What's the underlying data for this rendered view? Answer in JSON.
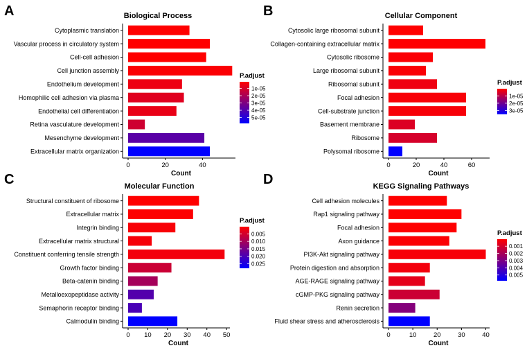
{
  "colors": {
    "low": "#ff0000",
    "high": "#0000ff"
  },
  "chart_data": [
    {
      "letter": "A",
      "type": "bar",
      "orientation": "horizontal",
      "title": "Biological Process",
      "xlabel": "Count",
      "xlim": [
        0,
        57
      ],
      "xticks": [
        "0",
        "20",
        "40"
      ],
      "xtick_values": [
        0,
        20,
        40
      ],
      "categories": [
        "Cytoplasmic translation",
        "Vascular process in circulatory system",
        "Cell-cell adhesion",
        "Cell junction assembly",
        "Endothelium development",
        "Homophilic cell adhesion via plasma",
        "Endothelial cell differentiation",
        "Retina vasculature development",
        "Mesenchyme development",
        "Extracellular matrix organization"
      ],
      "values": [
        33,
        44,
        42,
        56,
        29,
        30,
        26,
        9,
        41,
        44
      ],
      "padj": [
        1e-06,
        1e-06,
        1e-06,
        2e-06,
        5e-06,
        8e-06,
        6e-06,
        1.2e-05,
        3.8e-05,
        5.8e-05
      ],
      "legend": {
        "title": "P.adjust",
        "labels": [
          "1e-05",
          "2e-05",
          "3e-05",
          "4e-05",
          "5e-05"
        ],
        "values": [
          1e-05,
          2e-05,
          3e-05,
          4e-05,
          5e-05
        ],
        "min": 1e-06,
        "max": 5.8e-05
      }
    },
    {
      "letter": "B",
      "type": "bar",
      "orientation": "horizontal",
      "title": "Cellular Component",
      "xlabel": "Count",
      "xlim": [
        0,
        72
      ],
      "xticks": [
        "0",
        "20",
        "40",
        "60"
      ],
      "xtick_values": [
        0,
        20,
        40,
        60
      ],
      "categories": [
        "Cytosolic large ribosomal subunit",
        "Collagen-containing extracellular matrix",
        "Cytosolic ribosome",
        "Large ribosomal subunit",
        "Ribosomal subunit",
        "Focal adhesion",
        "Cell-substrate junction",
        "Basement membrane",
        "Ribosome",
        "Polysomal ribosome"
      ],
      "values": [
        25,
        70,
        32,
        27,
        35,
        56,
        56,
        19,
        35,
        10
      ],
      "padj": [
        3e-07,
        4e-07,
        8e-07,
        1e-06,
        2.5e-06,
        1.2e-06,
        1.4e-06,
        5e-06,
        6e-06,
        3.5e-05
      ],
      "legend": {
        "title": "P.adjust",
        "labels": [
          "1e-05",
          "2e-05",
          "3e-05"
        ],
        "values": [
          1e-05,
          2e-05,
          3e-05
        ],
        "min": 3e-07,
        "max": 3.5e-05
      }
    },
    {
      "letter": "C",
      "type": "bar",
      "orientation": "horizontal",
      "title": "Molecular Function",
      "xlabel": "Count",
      "xlim": [
        0,
        51
      ],
      "xticks": [
        "0",
        "10",
        "20",
        "30",
        "40",
        "50"
      ],
      "xtick_values": [
        0,
        10,
        20,
        30,
        40,
        50
      ],
      "categories": [
        "Structural constituent of ribosome",
        "Extracellular matrix",
        "Integrin binding",
        "Extracellular matrix structural",
        "Constituent conferring tensile strength",
        "Growth factor binding",
        "Beta-catenin binding",
        "Metalloexopeptidase activity",
        "Semaphorin receptor binding",
        "Calmodulin binding"
      ],
      "values": [
        36,
        33,
        24,
        12,
        49,
        22,
        15,
        13,
        7,
        25
      ],
      "padj": [
        0.0002,
        0.0004,
        0.001,
        0.0012,
        0.0015,
        0.006,
        0.01,
        0.019,
        0.02,
        0.028
      ],
      "legend": {
        "title": "P.adjust",
        "labels": [
          "0.005",
          "0.010",
          "0.015",
          "0.020",
          "0.025"
        ],
        "values": [
          0.005,
          0.01,
          0.015,
          0.02,
          0.025
        ],
        "min": 0.0002,
        "max": 0.028
      }
    },
    {
      "letter": "D",
      "type": "bar",
      "orientation": "horizontal",
      "title": "KEGG Signaling Pathways",
      "xlabel": "Count",
      "xlim": [
        0,
        41
      ],
      "xticks": [
        "0",
        "10",
        "20",
        "30",
        "40"
      ],
      "xtick_values": [
        0,
        10,
        20,
        30,
        40
      ],
      "categories": [
        "Cell adhesion molecules",
        "Rap1 signaling pathway",
        "Focal adhesion",
        "Axon guidance",
        "PI3K-Akt signaling pathway",
        "Protein digestion and absorption",
        "AGE-RAGE signaling pathway",
        "cGMP-PKG signaling pathway",
        "Renin secretion",
        "Fluid shear stress and atherosclerosis"
      ],
      "values": [
        24,
        30,
        28,
        25,
        40,
        17,
        15,
        21,
        11,
        17
      ],
      "padj": [
        2e-05,
        5e-05,
        5e-05,
        0.0001,
        0.0002,
        0.0003,
        0.0006,
        0.0012,
        0.0028,
        0.0058
      ],
      "legend": {
        "title": "P.adjust",
        "labels": [
          "0.001",
          "0.002",
          "0.003",
          "0.004",
          "0.005"
        ],
        "values": [
          0.001,
          0.002,
          0.003,
          0.004,
          0.005
        ],
        "min": 2e-05,
        "max": 0.0058
      }
    }
  ]
}
